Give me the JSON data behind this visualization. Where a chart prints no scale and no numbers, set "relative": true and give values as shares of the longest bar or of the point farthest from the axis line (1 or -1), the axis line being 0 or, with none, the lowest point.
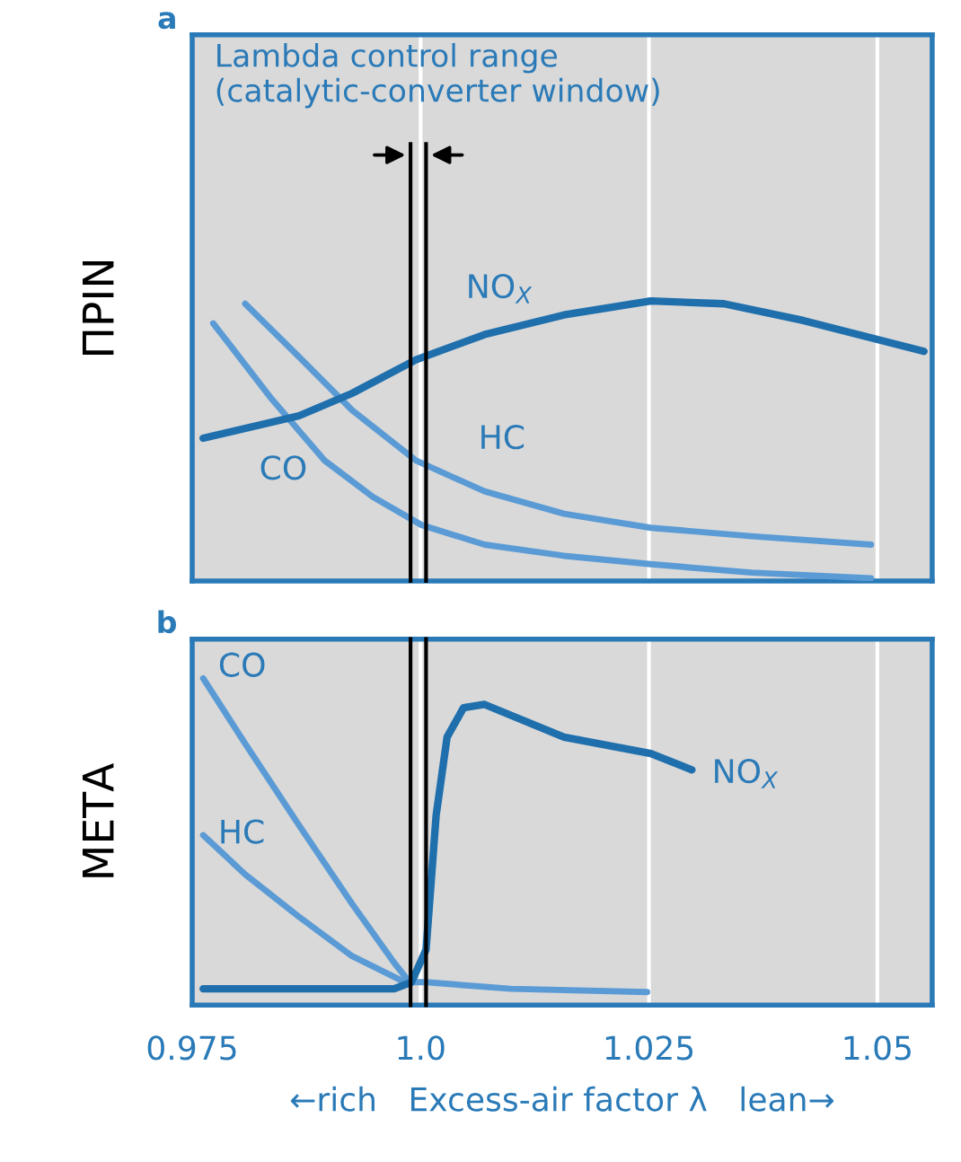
{
  "chart_data": [
    {
      "type": "line",
      "title": "a",
      "ylabel": "ΠΡΙΝ",
      "relative": true,
      "grid": "x",
      "tick_labels": false,
      "xlim": [
        0.975,
        1.056
      ],
      "xticks": [
        0.975,
        1.0,
        1.025,
        1.05
      ],
      "annotations": [
        "Lambda control range\n(catalytic-converter window)"
      ],
      "ref_lines": [
        {
          "axis": "x",
          "value": 0.9989,
          "color": "#000000"
        },
        {
          "axis": "x",
          "value": 1.0006,
          "color": "#000000"
        }
      ],
      "series": [
        {
          "name": "NO$_{X}$",
          "color": "#1f6fad",
          "x": [
            0.9762,
            0.9867,
            0.9925,
            0.9995,
            1.007,
            1.0157,
            1.0252,
            1.0332,
            1.0419,
            1.0551
          ],
          "values": [
            0.51,
            0.59,
            0.67,
            0.79,
            0.88,
            0.95,
            1.0,
            0.99,
            0.93,
            0.82
          ]
        },
        {
          "name": "HC",
          "color": "#5b9bd5",
          "x": [
            0.9808,
            0.9867,
            0.9925,
            0.9995,
            1.007,
            1.0157,
            1.0252,
            1.0362,
            1.0493
          ],
          "values": [
            0.99,
            0.8,
            0.61,
            0.43,
            0.32,
            0.24,
            0.19,
            0.16,
            0.13
          ]
        },
        {
          "name": "CO",
          "color": "#5b9bd5",
          "x": [
            0.9773,
            0.9837,
            0.9895,
            0.9948,
            1.0001,
            1.007,
            1.0157,
            1.0252,
            1.0362,
            1.0493
          ],
          "values": [
            0.92,
            0.65,
            0.43,
            0.3,
            0.2,
            0.13,
            0.09,
            0.06,
            0.03,
            0.01
          ]
        }
      ]
    },
    {
      "type": "line",
      "title": "b",
      "ylabel": "ΜΕΤΑ",
      "xlabel": "←rich   Excess-air factor λ   lean→",
      "relative": true,
      "grid": "x",
      "tick_labels": "x",
      "xlim": [
        0.975,
        1.056
      ],
      "xticks": [
        0.975,
        {
          "value": 1.0,
          "label": "1.0"
        },
        1.025,
        1.05
      ],
      "ref_lines": [
        {
          "axis": "x",
          "value": 0.9989,
          "color": "#000000"
        },
        {
          "axis": "x",
          "value": 1.0006,
          "color": "#000000"
        }
      ],
      "series": [
        {
          "name": "NO$_{X}$",
          "color": "#1f6fad",
          "x": [
            0.9762,
            0.9971,
            0.999,
            1.0006,
            1.0017,
            1.0029,
            1.0047,
            1.007,
            1.0157,
            1.0252,
            1.0297
          ],
          "values": [
            0.05,
            0.05,
            0.07,
            0.17,
            0.58,
            0.82,
            0.91,
            0.92,
            0.82,
            0.77,
            0.72
          ]
        },
        {
          "name": "CO",
          "color": "#5b9bd5",
          "x": [
            0.9762,
            0.9808,
            0.9867,
            0.9925,
            0.9971,
            0.9988,
            1.0006,
            1.0099,
            1.0248
          ],
          "values": [
            1.0,
            0.8,
            0.55,
            0.31,
            0.13,
            0.07,
            0.07,
            0.05,
            0.04
          ]
        },
        {
          "name": "HC",
          "color": "#5b9bd5",
          "x": [
            0.9762,
            0.9808,
            0.9867,
            0.9925,
            0.9983
          ],
          "values": [
            0.52,
            0.4,
            0.27,
            0.15,
            0.07
          ]
        }
      ]
    }
  ]
}
